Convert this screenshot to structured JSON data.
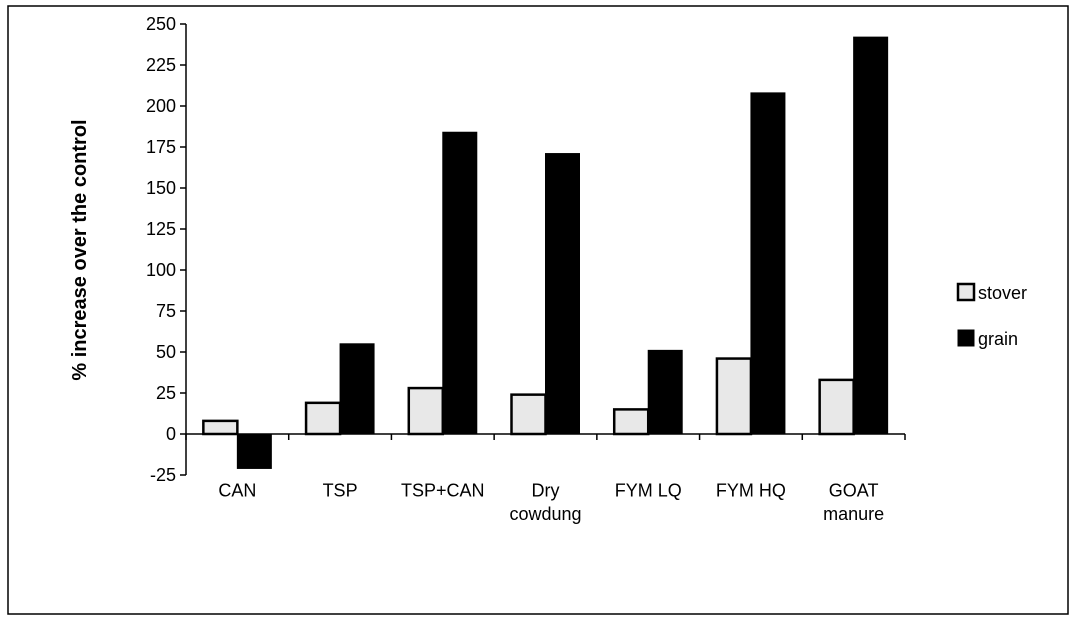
{
  "chart_data": {
    "type": "bar",
    "categories": [
      [
        "CAN"
      ],
      [
        "TSP"
      ],
      [
        "TSP+CAN"
      ],
      [
        "Dry",
        "cowdung"
      ],
      [
        "FYM LQ"
      ],
      [
        "FYM HQ"
      ],
      [
        "GOAT",
        "manure"
      ]
    ],
    "series": [
      {
        "name": "stover",
        "values": [
          8,
          19,
          28,
          24,
          15,
          46,
          33
        ],
        "fill": "#e8e8e8",
        "stroke": "#000000"
      },
      {
        "name": "grain",
        "values": [
          -21,
          55,
          184,
          171,
          51,
          208,
          242
        ],
        "fill": "#000000",
        "stroke": "#000000"
      }
    ],
    "title": "",
    "xlabel": "",
    "ylabel": "% increase over the control",
    "ylim": [
      -25,
      250
    ],
    "yticks": [
      -25,
      0,
      25,
      50,
      75,
      100,
      125,
      150,
      175,
      200,
      225,
      250
    ],
    "grid": false,
    "legend_position": "right"
  }
}
